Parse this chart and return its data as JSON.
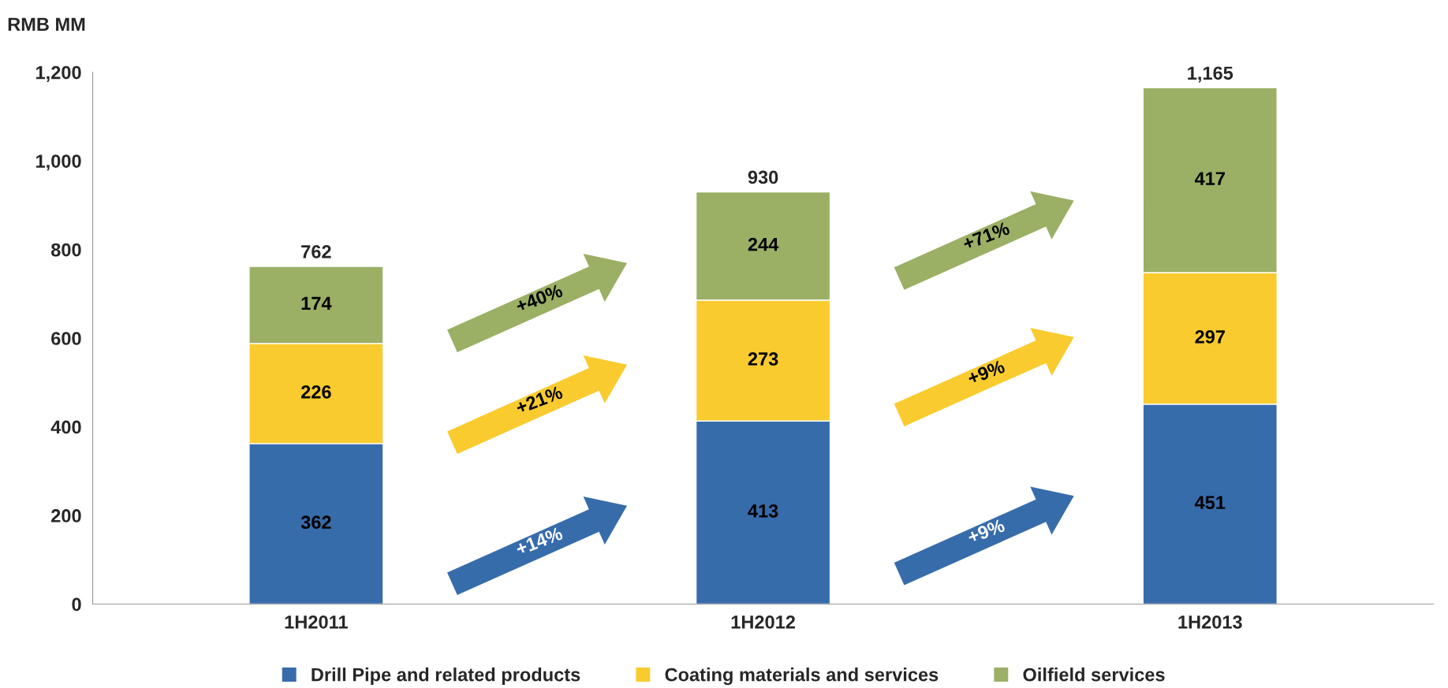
{
  "chart_data": {
    "type": "bar",
    "stacked": true,
    "ylabel": "RMB MM",
    "categories": [
      "1H2011",
      "1H2012",
      "1H2013"
    ],
    "series": [
      {
        "name": "Drill Pipe and related products",
        "color": "#376cab",
        "values": [
          362,
          413,
          451
        ]
      },
      {
        "name": "Coating materials and services",
        "color": "#f9cb2f",
        "values": [
          226,
          273,
          297
        ]
      },
      {
        "name": "Oilfield services",
        "color": "#9bb065",
        "values": [
          174,
          244,
          417
        ]
      }
    ],
    "data_labels": true,
    "totals": [
      "762",
      "930",
      "1,165"
    ],
    "ylim": [
      0,
      1200
    ],
    "yticks": [
      0,
      200,
      400,
      600,
      800,
      {
        "value": 1000,
        "label": "1,000"
      },
      {
        "value": 1200,
        "label": "1,200"
      }
    ],
    "grid": false,
    "legend": "bottom",
    "annotations": [
      "+14%",
      "+21%",
      "+40%",
      "+9%",
      "+9%",
      "+71%"
    ]
  }
}
